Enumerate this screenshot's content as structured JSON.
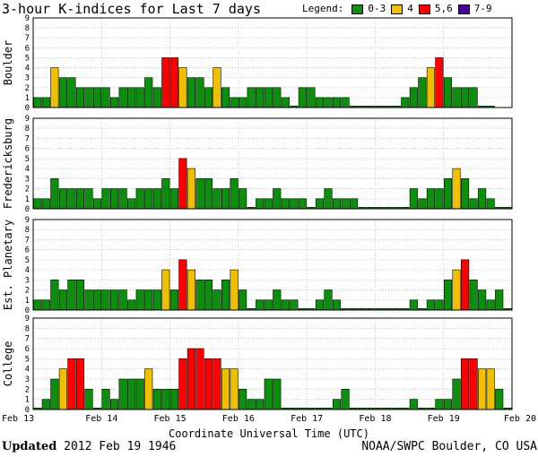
{
  "title": "3-hour K-indices for Last 7 days",
  "legend": {
    "label": "Legend:",
    "items": [
      {
        "label": "0-3",
        "color": "#0c8f0c"
      },
      {
        "label": "4",
        "color": "#f0c000"
      },
      {
        "label": "5,6",
        "color": "#ff0000"
      },
      {
        "label": "7-9",
        "color": "#4b0096"
      }
    ]
  },
  "footer": {
    "updated_label": "Updated",
    "updated_value": "2012 Feb 19 1946",
    "source": "NOAA/SWPC Boulder, CO USA"
  },
  "chart_data": {
    "type": "bar",
    "xlabel": "Coordinate Universal Time (UTC)",
    "x_ticks": [
      "Feb 13",
      "Feb 14",
      "Feb 15",
      "Feb 16",
      "Feb 17",
      "Feb 18",
      "Feb 19",
      "Feb 20"
    ],
    "ylim": [
      0,
      9
    ],
    "y_ticks": [
      0,
      1,
      2,
      3,
      4,
      5,
      6,
      7,
      8,
      9
    ],
    "grid": true,
    "color_scale": {
      "0-3": "#0c8f0c",
      "4": "#f0c000",
      "5,6": "#ff0000",
      "7-9": "#4b0096"
    },
    "panels": [
      {
        "name": "Boulder",
        "values": [
          1,
          1,
          4,
          3,
          3,
          2,
          2,
          2,
          2,
          1,
          2,
          2,
          2,
          3,
          2,
          5,
          5,
          4,
          3,
          3,
          2,
          4,
          2,
          1,
          1,
          2,
          2,
          2,
          2,
          1,
          0,
          2,
          2,
          1,
          1,
          1,
          1,
          0,
          0,
          0,
          0,
          0,
          0,
          1,
          2,
          3,
          4,
          5,
          3,
          2,
          2,
          2,
          0,
          0
        ]
      },
      {
        "name": "Fredericksburg",
        "values": [
          1,
          1,
          3,
          2,
          2,
          2,
          2,
          1,
          2,
          2,
          2,
          1,
          2,
          2,
          2,
          3,
          2,
          5,
          4,
          3,
          3,
          2,
          2,
          3,
          2,
          0,
          1,
          1,
          2,
          1,
          1,
          1,
          0,
          1,
          2,
          1,
          1,
          1,
          0,
          0,
          0,
          0,
          0,
          0,
          2,
          1,
          2,
          2,
          3,
          4,
          3,
          1,
          2,
          1,
          0,
          0
        ]
      },
      {
        "name": "Est. Planetary",
        "values": [
          1,
          1,
          3,
          2,
          3,
          3,
          2,
          2,
          2,
          2,
          2,
          1,
          2,
          2,
          2,
          4,
          2,
          5,
          4,
          3,
          3,
          2,
          3,
          4,
          2,
          0,
          1,
          1,
          2,
          1,
          1,
          0,
          0,
          1,
          2,
          1,
          0,
          0,
          0,
          0,
          0,
          0,
          0,
          0,
          1,
          0,
          1,
          1,
          3,
          4,
          5,
          3,
          2,
          1,
          2,
          0,
          0
        ]
      },
      {
        "name": "College",
        "values": [
          0,
          1,
          3,
          4,
          5,
          5,
          2,
          0,
          2,
          1,
          3,
          3,
          3,
          4,
          2,
          2,
          2,
          5,
          6,
          6,
          5,
          5,
          4,
          4,
          2,
          1,
          1,
          3,
          3,
          0,
          0,
          0,
          0,
          0,
          0,
          1,
          2,
          0,
          0,
          0,
          0,
          0,
          0,
          0,
          1,
          0,
          0,
          1,
          1,
          3,
          5,
          5,
          4,
          4,
          2,
          0,
          0
        ]
      }
    ]
  }
}
